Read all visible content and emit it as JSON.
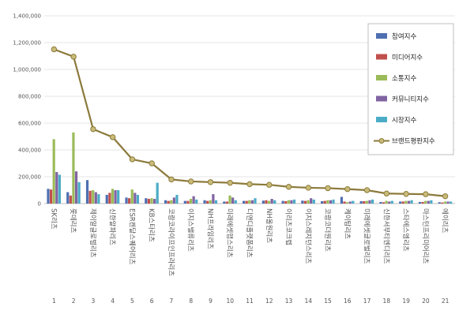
{
  "chart_data": {
    "type": "bar",
    "ylim": [
      0,
      1400000
    ],
    "yticks": [
      "0",
      "200,000",
      "400,000",
      "600,000",
      "800,000",
      "1,000,000",
      "1,200,000",
      "1,400,000"
    ],
    "ranks": [
      "1",
      "2",
      "3",
      "4",
      "5",
      "6",
      "7",
      "8",
      "9",
      "10",
      "11",
      "12",
      "13",
      "14",
      "15",
      "16",
      "17",
      "18",
      "19",
      "20",
      "21"
    ],
    "categories": [
      "SK리츠",
      "롯데리츠",
      "제이알글로벌리츠",
      "신한알파리츠",
      "ESR켄달스퀘어리츠",
      "KB스타리츠",
      "코람코라이프인프라리츠",
      "이지스밸류리츠",
      "NH프라임리츠",
      "미래에셋맵스리츠",
      "디앤디플랫폼리츠",
      "NH올원리츠",
      "이리츠코크렙",
      "이지스레지던스리츠",
      "코람코더원리츠",
      "케이탑리츠",
      "미래에셋글로벌리츠",
      "신한서부티엔디리츠",
      "스타에스엠리츠",
      "마스턴프리미어리츠",
      "에이리츠"
    ],
    "series": [
      {
        "name": "참여지수",
        "color": "#4f6fb0",
        "values": [
          110000,
          85000,
          175000,
          65000,
          45000,
          40000,
          25000,
          20000,
          25000,
          15000,
          20000,
          22000,
          20000,
          22000,
          18000,
          50000,
          18000,
          12000,
          15000,
          12000,
          10000
        ]
      },
      {
        "name": "미디어지수",
        "color": "#c0504d",
        "values": [
          105000,
          60000,
          95000,
          80000,
          40000,
          35000,
          20000,
          20000,
          20000,
          15000,
          20000,
          25000,
          18000,
          20000,
          20000,
          15000,
          18000,
          10000,
          15000,
          12000,
          8000
        ]
      },
      {
        "name": "소통지수",
        "color": "#9bbb59",
        "values": [
          480000,
          530000,
          100000,
          110000,
          105000,
          40000,
          25000,
          35000,
          25000,
          60000,
          25000,
          20000,
          25000,
          25000,
          25000,
          10000,
          20000,
          20000,
          20000,
          20000,
          15000
        ]
      },
      {
        "name": "커뮤니티지수",
        "color": "#8064a2",
        "values": [
          235000,
          240000,
          85000,
          100000,
          80000,
          35000,
          45000,
          55000,
          70000,
          45000,
          25000,
          35000,
          25000,
          40000,
          25000,
          15000,
          25000,
          15000,
          20000,
          20000,
          15000
        ]
      },
      {
        "name": "시장지수",
        "color": "#4bacc6",
        "values": [
          215000,
          160000,
          70000,
          100000,
          65000,
          155000,
          65000,
          30000,
          25000,
          25000,
          40000,
          25000,
          30000,
          30000,
          30000,
          20000,
          30000,
          20000,
          25000,
          25000,
          15000
        ]
      }
    ],
    "line_series": {
      "name": "브랜드평판지수",
      "color": "#8c7a3c",
      "marker_color": "#c9bc79",
      "values": [
        1150000,
        1095000,
        555000,
        495000,
        330000,
        300000,
        180000,
        165000,
        160000,
        155000,
        145000,
        140000,
        125000,
        118000,
        115000,
        108000,
        100000,
        75000,
        72000,
        70000,
        55000
      ]
    },
    "legend_position": "top-right",
    "grid": true
  }
}
